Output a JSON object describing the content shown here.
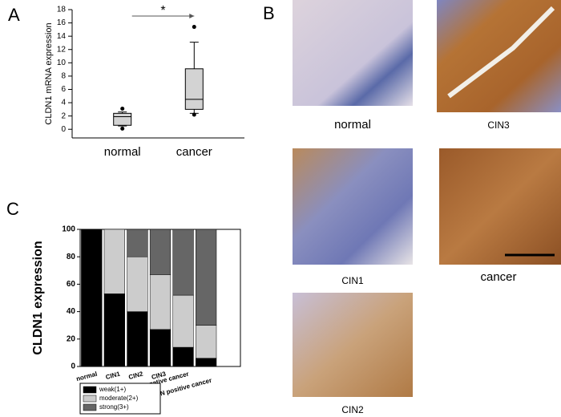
{
  "chart_data": [
    {
      "type": "box",
      "panel_label": "A",
      "ylabel": "CLDN1 mRNA expression",
      "annotation": "*",
      "categories": [
        "normal",
        "cancer"
      ],
      "q1": [
        0.6,
        3.0
      ],
      "median": [
        1.9,
        4.5
      ],
      "q3": [
        2.4,
        9.1
      ],
      "whisker_low": [
        0.5,
        2.4
      ],
      "whisker_high": [
        2.6,
        13.1
      ],
      "outliers": [
        [
          3.1,
          0.1
        ],
        [
          15.4,
          2.2
        ]
      ],
      "color": "#d3d3d3",
      "ylim": [
        -1.3,
        18
      ],
      "yticks": [
        0,
        2,
        4,
        6,
        8,
        10,
        12,
        14,
        16,
        18
      ]
    },
    {
      "type": "stacked_bar",
      "panel_label": "C",
      "ylabel": "CLDN1 expression",
      "categories": [
        "normal",
        "CIN1",
        "CIN2",
        "CIN3",
        "LN negative cancer",
        "LN positive cancer"
      ],
      "series": [
        {
          "name": "weak(1+)",
          "color": "#000000",
          "values": [
            100,
            53,
            40,
            27,
            14,
            6
          ]
        },
        {
          "name": "moderate(2+)",
          "color": "#cccccc",
          "values": [
            0,
            47,
            40,
            40,
            38,
            24
          ]
        },
        {
          "name": "strong(3+)",
          "color": "#666666",
          "values": [
            0,
            0,
            20,
            33,
            48,
            70
          ]
        }
      ],
      "ylim": [
        0,
        100
      ],
      "yticks": [
        0,
        20,
        40,
        60,
        80,
        100
      ]
    }
  ],
  "image_panel": {
    "label": "B",
    "captions": [
      "normal",
      "CIN3",
      "CIN1",
      "cancer",
      "CIN2"
    ]
  }
}
